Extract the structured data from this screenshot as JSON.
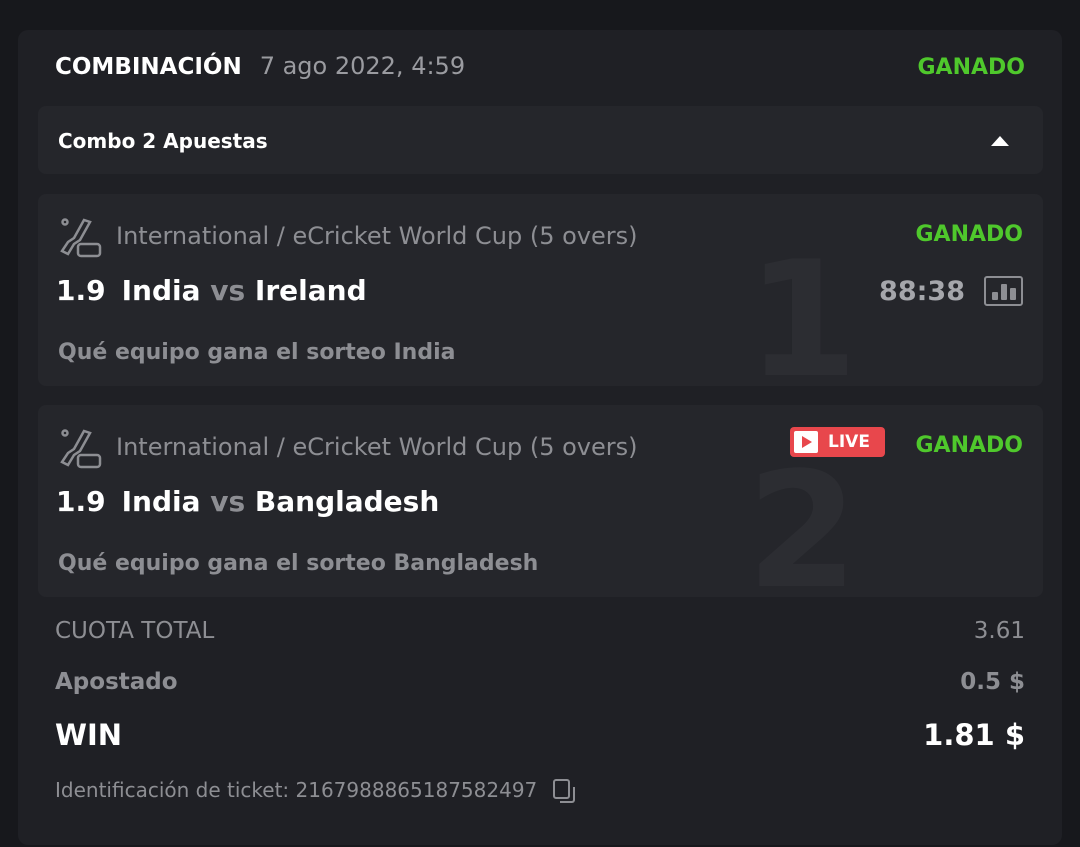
{
  "header": {
    "type": "COMBINACIÓN",
    "date": "7 ago 2022, 4:59",
    "status": "GANADO"
  },
  "combo": {
    "label": "Combo 2 Apuestas",
    "caret": "caret-up-icon"
  },
  "legs": [
    {
      "index": "1",
      "icon": "ecricket-gamepad-icon",
      "tournament": "International / eCricket World Cup (5 overs)",
      "status": "GANADO",
      "odd": "1.9",
      "team1": "India",
      "vs": "vs",
      "team2": "Ireland",
      "selection": "Qué equipo gana el sorteo India",
      "time": "88:38",
      "stats_icon": "bar-chart-icon"
    },
    {
      "index": "2",
      "icon": "ecricket-gamepad-icon",
      "tournament": "International / eCricket World Cup (5 overs)",
      "status": "GANADO",
      "live": "LIVE",
      "odd": "1.9",
      "team1": "India",
      "vs": "vs",
      "team2": "Bangladesh",
      "selection": "Qué equipo gana el sorteo Bangladesh"
    }
  ],
  "summary": {
    "cuota_label": "CUOTA TOTAL",
    "cuota": "3.61",
    "apostado_label": "Apostado",
    "apostado": "0.5 $",
    "win_label": "WIN",
    "win": "1.81 $"
  },
  "ticket": {
    "label": "Identificación de ticket: 2167988865187582497",
    "copy_icon": "copy-icon"
  },
  "colors": {
    "win": "#4fc82c",
    "live": "#e8474c",
    "card": "#1f2025",
    "leg": "#25262b"
  }
}
